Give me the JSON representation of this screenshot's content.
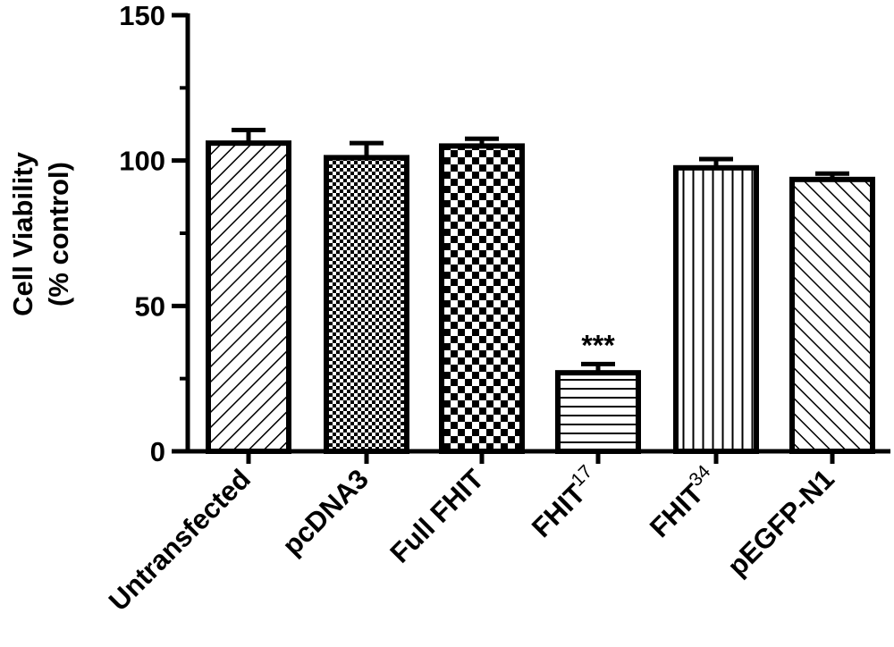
{
  "chart_data": {
    "type": "bar",
    "ylabel_line1": "Cell Viability",
    "ylabel_line2": "(% control)",
    "ylim": [
      0,
      150
    ],
    "yticks": [
      0,
      50,
      100,
      150
    ],
    "grid": false,
    "categories": [
      {
        "label": "Untransfected",
        "sup": ""
      },
      {
        "label": "pcDNA3",
        "sup": ""
      },
      {
        "label": "Full FHIT",
        "sup": ""
      },
      {
        "label": "FHIT",
        "sup": "17"
      },
      {
        "label": "FHIT",
        "sup": "34"
      },
      {
        "label": "pEGFP-N1",
        "sup": ""
      }
    ],
    "values": [
      106,
      101,
      105,
      27,
      97.5,
      93.5
    ],
    "errors": [
      4.5,
      5,
      2.5,
      3,
      3,
      2
    ],
    "patterns": [
      "diag-backslash",
      "fine-checker",
      "coarse-checker",
      "horizontal-lines",
      "vertical-lines",
      "diag-slash"
    ],
    "annotations": [
      {
        "category_index": 3,
        "text": "***"
      }
    ]
  }
}
